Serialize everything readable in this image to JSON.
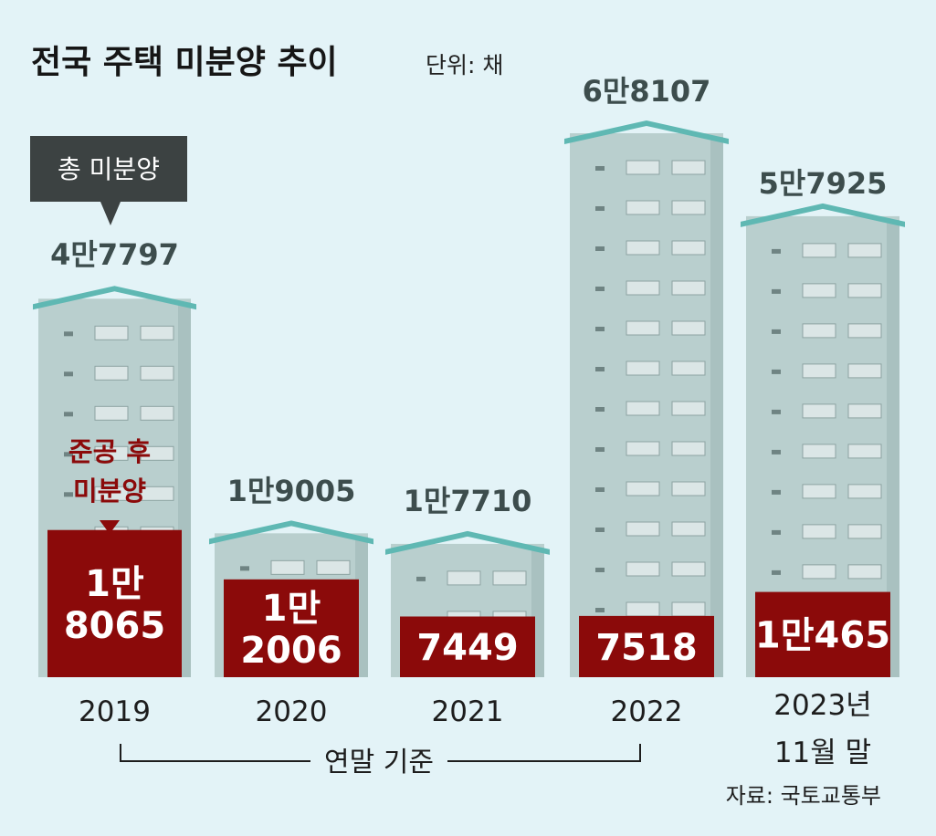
{
  "header": {
    "title": "전국 주택 미분양 추이",
    "unit": "단위: 채"
  },
  "legend": {
    "total_label": "총 미분양",
    "after_completion_line1": "준공 후",
    "after_completion_line2": "미분양"
  },
  "axis": {
    "basis_label": "연말 기준"
  },
  "source": "자료: 국토교통부",
  "colors": {
    "background": "#e3f3f7",
    "building": "#b9cfce",
    "roof": "#5fb8b3",
    "inner_bar": "#8b0a0a",
    "legend_box": "#3c4242"
  },
  "chart_data": {
    "type": "bar",
    "title": "전국 주택 미분양 추이",
    "ylabel": "단위: 채",
    "xlabel": "연말 기준",
    "categories": [
      "2019",
      "2020",
      "2021",
      "2022",
      "2023년 11월 말"
    ],
    "category_lines": [
      [
        "2019"
      ],
      [
        "2020"
      ],
      [
        "2021"
      ],
      [
        "2022"
      ],
      [
        "2023년",
        "11월 말"
      ]
    ],
    "series": [
      {
        "name": "총 미분양",
        "values": [
          47797,
          19005,
          17710,
          68107,
          57925
        ],
        "labels": [
          "4만7797",
          "1만9005",
          "1만7710",
          "6만8107",
          "5만7925"
        ]
      },
      {
        "name": "준공 후 미분양",
        "values": [
          18065,
          12006,
          7449,
          7518,
          10465
        ],
        "label_lines": [
          [
            "1만",
            "8065"
          ],
          [
            "1만",
            "2006"
          ],
          [
            "7449"
          ],
          [
            "7518"
          ],
          [
            "1만465"
          ]
        ]
      }
    ]
  }
}
